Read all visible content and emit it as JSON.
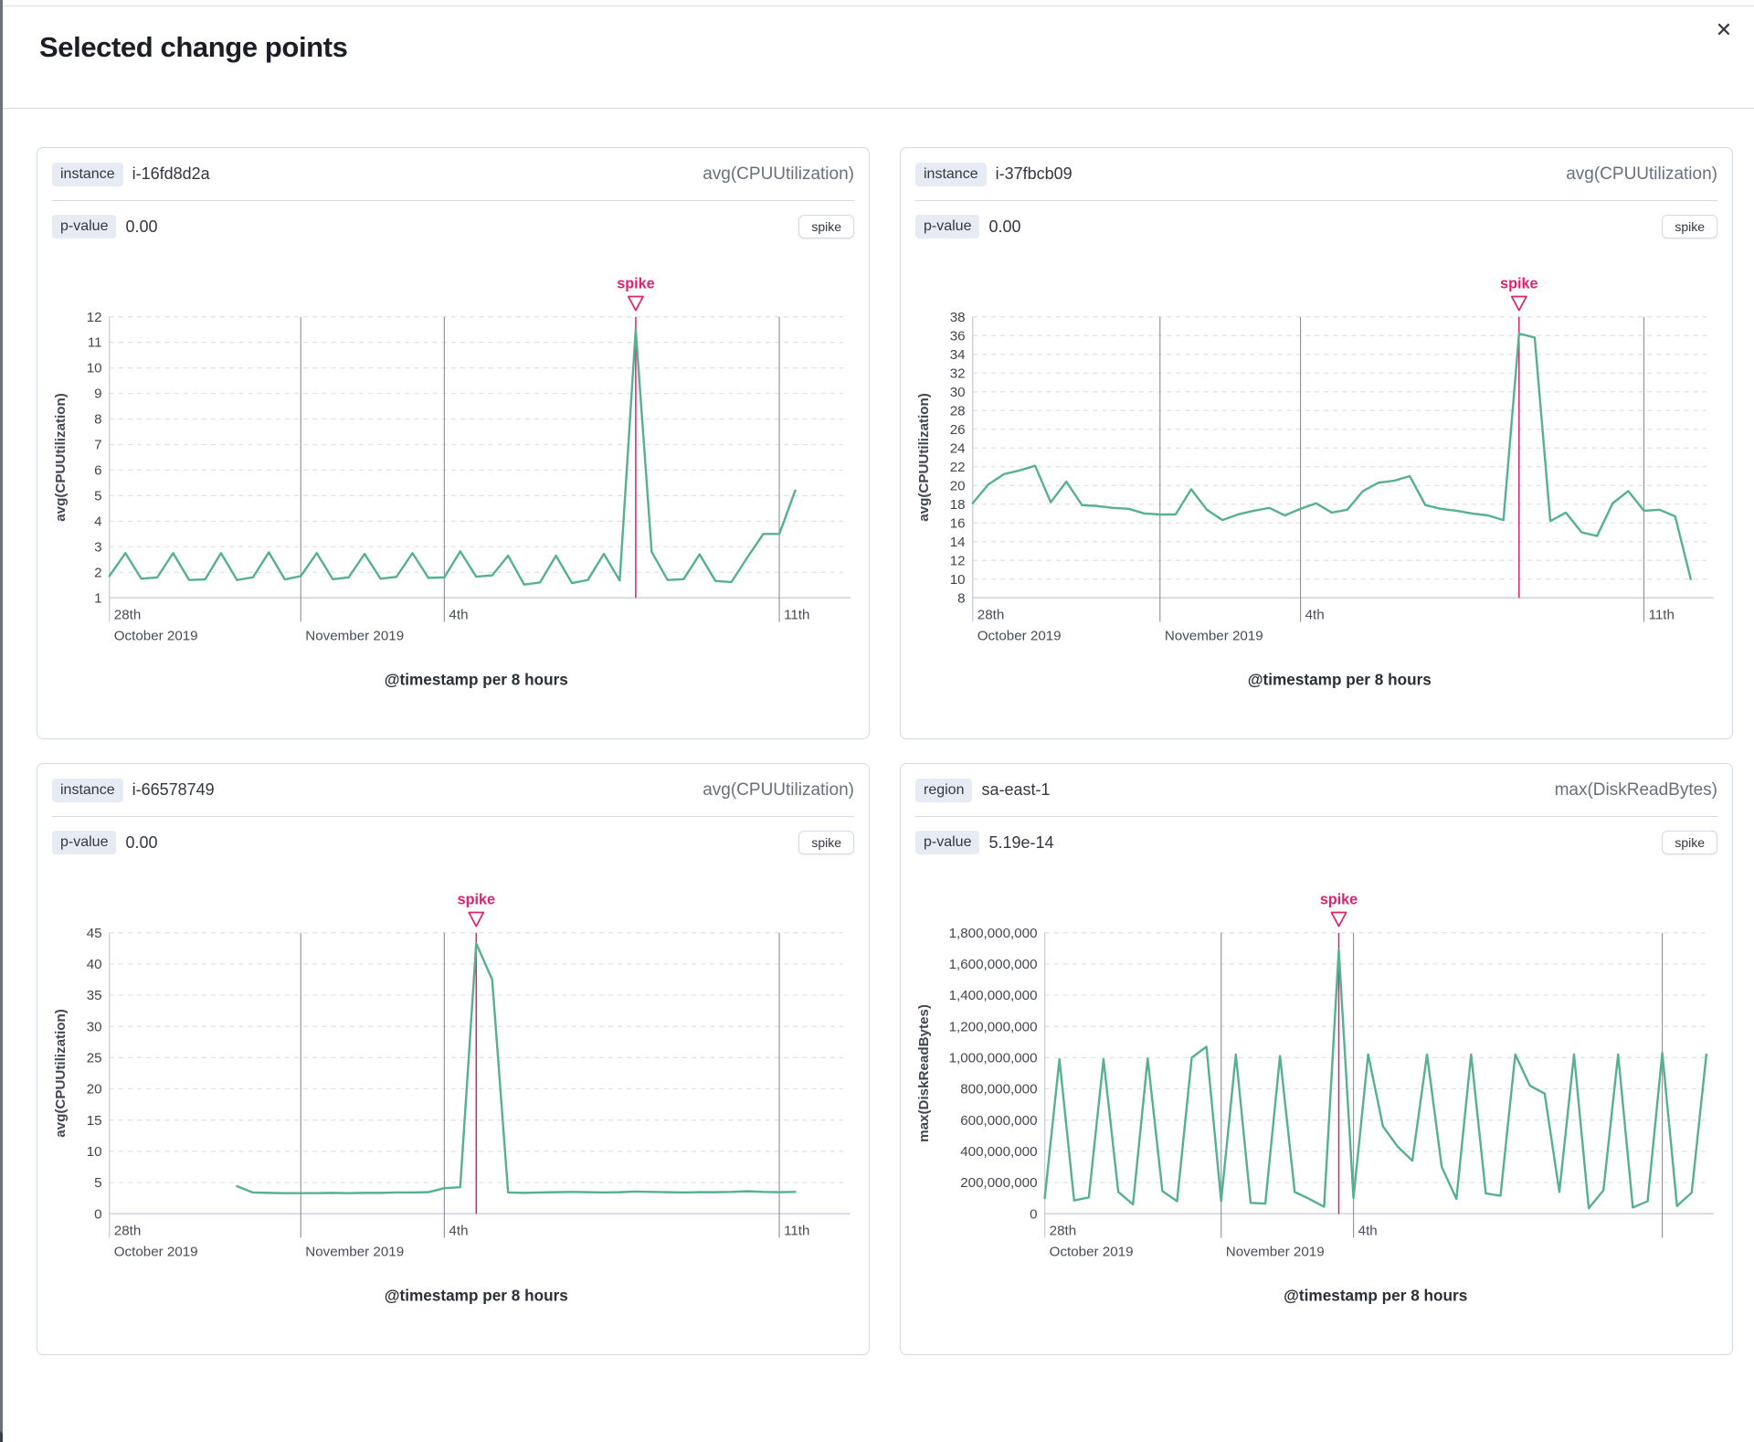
{
  "modal": {
    "title": "Selected change points",
    "close_icon": "✕"
  },
  "colors": {
    "line": "#57b094",
    "spike": "#e0226e",
    "grid_dash": "#dde1ec",
    "month_line": "#8b919c",
    "axis_line": "#c9ced8",
    "tick_text": "#424650",
    "date_text": "#474c56",
    "axis_title_text": "#2b2f36"
  },
  "panels": [
    {
      "badge": "instance",
      "badge_value": "i-16fd8d2a",
      "metric": "avg(CPUUtilization)",
      "p_label": "p-value",
      "p_value": "0.00",
      "button": "spike"
    },
    {
      "badge": "instance",
      "badge_value": "i-37fbcb09",
      "metric": "avg(CPUUtilization)",
      "p_label": "p-value",
      "p_value": "0.00",
      "button": "spike"
    },
    {
      "badge": "instance",
      "badge_value": "i-66578749",
      "metric": "avg(CPUUtilization)",
      "p_label": "p-value",
      "p_value": "0.00",
      "button": "spike"
    },
    {
      "badge": "region",
      "badge_value": "sa-east-1",
      "metric": "max(DiskReadBytes)",
      "p_label": "p-value",
      "p_value": "5.19e-14",
      "button": "spike"
    }
  ],
  "chart_data": [
    {
      "type": "line",
      "title": "instance i-16fd8d2a",
      "annotation": "spike",
      "change_point_type": "spike",
      "p_value": "0.00",
      "ylabel": "avg(CPUUtilization)",
      "xlabel": "@timestamp per 8 hours",
      "ylim": [
        1,
        12
      ],
      "ytick_step": 1,
      "y_format": "plain",
      "x_domain": 46,
      "spike_index": 33,
      "x_marks": [
        {
          "p": 0,
          "line": false,
          "l1": "28th",
          "l2": "October 2019"
        },
        {
          "p": 12,
          "line": true,
          "l1": "",
          "l2": "November 2019"
        },
        {
          "p": 21,
          "line": true,
          "l1": "4th",
          "l2": ""
        },
        {
          "p": 42,
          "line": true,
          "l1": "11th",
          "l2": ""
        }
      ],
      "layout": {
        "y_label_width": 26
      },
      "values": [
        1.85,
        2.75,
        1.75,
        1.8,
        2.75,
        1.7,
        1.72,
        2.75,
        1.7,
        1.8,
        2.78,
        1.72,
        1.85,
        2.75,
        1.73,
        1.8,
        2.72,
        1.75,
        1.82,
        2.75,
        1.78,
        1.8,
        2.82,
        1.83,
        1.88,
        2.65,
        1.52,
        1.6,
        2.65,
        1.58,
        1.7,
        2.72,
        1.68,
        11.5,
        2.8,
        1.7,
        1.73,
        2.7,
        1.66,
        1.62,
        2.58,
        3.5,
        3.5,
        5.2
      ]
    },
    {
      "type": "line",
      "title": "instance i-37fbcb09",
      "annotation": "spike",
      "change_point_type": "spike",
      "p_value": "0.00",
      "ylabel": "avg(CPUUtilization)",
      "xlabel": "@timestamp per 8 hours",
      "ylim": [
        8,
        38
      ],
      "ytick_step": 2,
      "y_format": "plain",
      "x_domain": 47,
      "spike_index": 35,
      "x_marks": [
        {
          "p": 0,
          "line": false,
          "l1": "28th",
          "l2": "October 2019"
        },
        {
          "p": 12,
          "line": true,
          "l1": "",
          "l2": "November 2019"
        },
        {
          "p": 21,
          "line": true,
          "l1": "4th",
          "l2": ""
        },
        {
          "p": 43,
          "line": true,
          "l1": "11th",
          "l2": ""
        }
      ],
      "layout": {
        "y_label_width": 26
      },
      "values": [
        18.1,
        20.1,
        21.2,
        21.6,
        22.1,
        18.2,
        20.4,
        17.9,
        17.8,
        17.6,
        17.5,
        17.0,
        16.9,
        16.9,
        19.6,
        17.4,
        16.3,
        16.9,
        17.3,
        17.6,
        16.8,
        17.5,
        18.1,
        17.1,
        17.4,
        19.4,
        20.3,
        20.5,
        21.0,
        17.9,
        17.5,
        17.3,
        17.0,
        16.8,
        16.3,
        36.2,
        35.8,
        16.2,
        17.1,
        15.0,
        14.6,
        18.1,
        19.4,
        17.3,
        17.4,
        16.7,
        10.0
      ]
    },
    {
      "type": "line",
      "title": "instance i-66578749",
      "annotation": "spike",
      "change_point_type": "spike",
      "p_value": "0.00",
      "ylabel": "avg(CPUUtilization)",
      "xlabel": "@timestamp per 8 hours",
      "ylim": [
        0,
        45
      ],
      "ytick_step": 5,
      "y_format": "plain",
      "x_domain": 46,
      "spike_index": 23,
      "x_marks": [
        {
          "p": 0,
          "line": false,
          "l1": "28th",
          "l2": "October 2019"
        },
        {
          "p": 12,
          "line": true,
          "l1": "",
          "l2": "November 2019"
        },
        {
          "p": 21,
          "line": true,
          "l1": "4th",
          "l2": ""
        },
        {
          "p": 42,
          "line": true,
          "l1": "11th",
          "l2": ""
        }
      ],
      "layout": {
        "y_label_width": 26
      },
      "values": [
        null,
        null,
        null,
        null,
        null,
        null,
        null,
        null,
        4.4,
        3.4,
        3.35,
        3.3,
        3.3,
        3.3,
        3.35,
        3.3,
        3.35,
        3.35,
        3.4,
        3.4,
        3.45,
        4.1,
        4.25,
        43.3,
        37.5,
        3.4,
        3.35,
        3.4,
        3.45,
        3.5,
        3.45,
        3.4,
        3.45,
        3.55,
        3.5,
        3.45,
        3.4,
        3.45,
        3.45,
        3.5,
        3.6,
        3.5,
        3.45,
        3.5
      ]
    },
    {
      "type": "line",
      "title": "region sa-east-1",
      "annotation": "spike",
      "change_point_type": "spike",
      "p_value": "5.19e-14",
      "ylabel": "max(DiskReadBytes)",
      "xlabel": "@timestamp per 8 hours",
      "ylim": [
        0,
        1800000000
      ],
      "ytick_step": 200000000,
      "y_format": "comma",
      "x_domain": 45,
      "spike_index": 20,
      "x_marks": [
        {
          "p": 0,
          "line": false,
          "l1": "28th",
          "l2": "October 2019"
        },
        {
          "p": 12,
          "line": true,
          "l1": "",
          "l2": "November 2019"
        },
        {
          "p": 21,
          "line": true,
          "l1": "4th",
          "l2": ""
        },
        {
          "p": 42,
          "line": true,
          "l1": "",
          "l2": ""
        }
      ],
      "layout": {
        "y_label_width": 104
      },
      "values": [
        100000000,
        990000000,
        85000000,
        105000000,
        990000000,
        140000000,
        60000000,
        995000000,
        145000000,
        80000000,
        1000000000,
        1070000000,
        80000000,
        1020000000,
        70000000,
        65000000,
        1010000000,
        140000000,
        95000000,
        45000000,
        1690000000,
        100000000,
        1020000000,
        560000000,
        430000000,
        340000000,
        1020000000,
        300000000,
        95000000,
        1020000000,
        130000000,
        115000000,
        1020000000,
        820000000,
        770000000,
        140000000,
        1020000000,
        35000000,
        150000000,
        1020000000,
        40000000,
        80000000,
        1030000000,
        50000000,
        135000000,
        1020000000
      ]
    }
  ]
}
